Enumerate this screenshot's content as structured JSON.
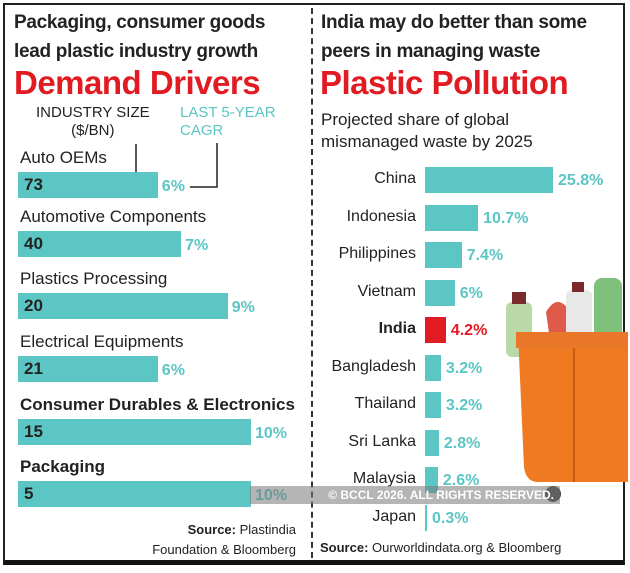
{
  "left": {
    "headline": [
      "Packaging, consumer goods",
      "lead plastic industry growth"
    ],
    "title": "Demand Drivers",
    "col_size": [
      "INDUSTRY SIZE",
      "($/BN)"
    ],
    "col_cagr": [
      "LAST 5-YEAR",
      "CAGR"
    ],
    "source_bold": "Source:",
    "source": [
      "Plastindia",
      "Foundation & Bloomberg"
    ]
  },
  "right": {
    "headline": [
      "India may do better than some",
      "peers in managing waste"
    ],
    "title": "Plastic Pollution",
    "subtitle": [
      "Projected share of global",
      "mismanaged waste by 2025"
    ],
    "source_bold": "Source:",
    "source": "Ourworldindata.org & Bloomberg"
  },
  "watermark": "© BCCL 2026. ALL RIGHTS RESERVED.",
  "colors": {
    "bar": "#5bc6c4",
    "highlight": "#e11b22",
    "title": "#e11b22"
  },
  "chart_data": [
    {
      "type": "bar",
      "title": "Demand Drivers",
      "categories": [
        "Auto OEMs",
        "Automotive Components",
        "Plastics Processing",
        "Electrical Equipments",
        "Consumer Durables & Electronics",
        "Packaging"
      ],
      "series": [
        {
          "name": "INDUSTRY SIZE ($/BN)",
          "values": [
            73,
            40,
            20,
            21,
            15,
            5
          ],
          "labels": [
            "73",
            "40",
            "20",
            "21",
            "15",
            "5"
          ]
        },
        {
          "name": "LAST 5-YEAR CAGR",
          "values": [
            6,
            7,
            9,
            6,
            10,
            10
          ],
          "labels": [
            "6%",
            "7%",
            "9%",
            "6%",
            "10%",
            "10%"
          ]
        }
      ],
      "bold_categories": [
        false,
        false,
        false,
        false,
        true,
        true
      ]
    },
    {
      "type": "bar",
      "orientation": "horizontal",
      "title": "Plastic Pollution",
      "subtitle": "Projected share of global mismanaged waste by 2025",
      "categories": [
        "China",
        "Indonesia",
        "Philippines",
        "Vietnam",
        "India",
        "Bangladesh",
        "Thailand",
        "Sri Lanka",
        "Malaysia",
        "Japan"
      ],
      "values": [
        25.8,
        10.7,
        7.4,
        6,
        4.2,
        3.2,
        3.2,
        2.8,
        2.6,
        0.3
      ],
      "labels": [
        "25.8%",
        "10.7%",
        "7.4%",
        "6%",
        "4.2%",
        "3.2%",
        "3.2%",
        "2.8%",
        "2.6%",
        "0.3%"
      ],
      "highlight": "India"
    }
  ]
}
